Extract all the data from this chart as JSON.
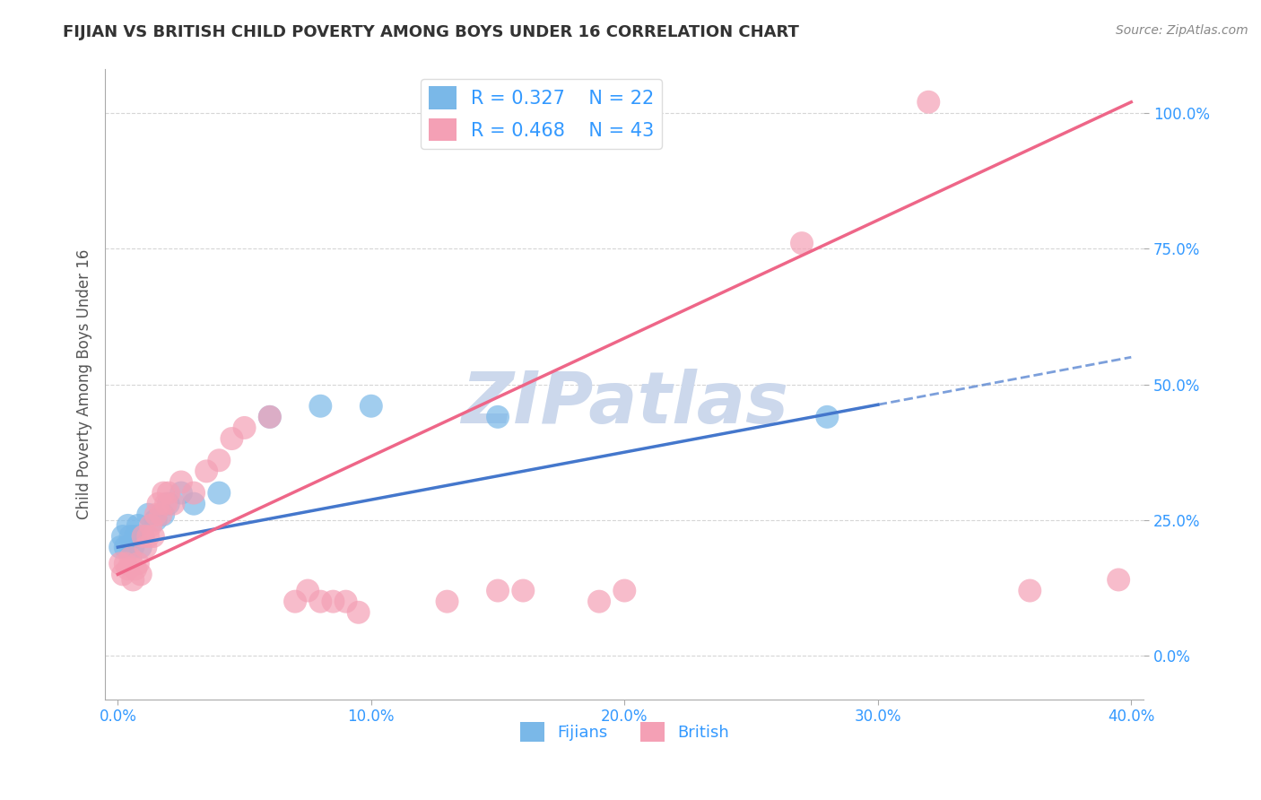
{
  "title": "FIJIAN VS BRITISH CHILD POVERTY AMONG BOYS UNDER 16 CORRELATION CHART",
  "source": "Source: ZipAtlas.com",
  "ylabel": "Child Poverty Among Boys Under 16",
  "fijian_color": "#7ab8e8",
  "british_color": "#f4a0b5",
  "fijian_line_color": "#4477cc",
  "british_line_color": "#ee6688",
  "fijian_R": 0.327,
  "fijian_N": 22,
  "british_R": 0.468,
  "british_N": 43,
  "xlim": [
    -0.005,
    0.405
  ],
  "ylim": [
    -0.08,
    1.08
  ],
  "xtick_vals": [
    0.0,
    0.1,
    0.2,
    0.3,
    0.4
  ],
  "ytick_vals": [
    0.0,
    0.25,
    0.5,
    0.75,
    1.0
  ],
  "xticklabels": [
    "0.0%",
    "10.0%",
    "20.0%",
    "30.0%",
    "40.0%"
  ],
  "yticklabels": [
    "0.0%",
    "25.0%",
    "50.0%",
    "75.0%",
    "100.0%"
  ],
  "watermark": "ZIPatlas",
  "fijian_points": [
    [
      0.001,
      0.2
    ],
    [
      0.002,
      0.22
    ],
    [
      0.003,
      0.2
    ],
    [
      0.004,
      0.24
    ],
    [
      0.005,
      0.22
    ],
    [
      0.006,
      0.2
    ],
    [
      0.007,
      0.22
    ],
    [
      0.008,
      0.24
    ],
    [
      0.009,
      0.2
    ],
    [
      0.01,
      0.22
    ],
    [
      0.012,
      0.26
    ],
    [
      0.015,
      0.25
    ],
    [
      0.018,
      0.26
    ],
    [
      0.02,
      0.28
    ],
    [
      0.025,
      0.3
    ],
    [
      0.03,
      0.28
    ],
    [
      0.04,
      0.3
    ],
    [
      0.06,
      0.44
    ],
    [
      0.08,
      0.46
    ],
    [
      0.1,
      0.46
    ],
    [
      0.15,
      0.44
    ],
    [
      0.28,
      0.44
    ]
  ],
  "british_points": [
    [
      0.001,
      0.17
    ],
    [
      0.002,
      0.15
    ],
    [
      0.003,
      0.17
    ],
    [
      0.004,
      0.16
    ],
    [
      0.005,
      0.18
    ],
    [
      0.006,
      0.14
    ],
    [
      0.007,
      0.16
    ],
    [
      0.008,
      0.17
    ],
    [
      0.009,
      0.15
    ],
    [
      0.01,
      0.22
    ],
    [
      0.011,
      0.2
    ],
    [
      0.012,
      0.22
    ],
    [
      0.013,
      0.24
    ],
    [
      0.014,
      0.22
    ],
    [
      0.015,
      0.26
    ],
    [
      0.016,
      0.28
    ],
    [
      0.017,
      0.26
    ],
    [
      0.018,
      0.3
    ],
    [
      0.019,
      0.28
    ],
    [
      0.02,
      0.3
    ],
    [
      0.022,
      0.28
    ],
    [
      0.025,
      0.32
    ],
    [
      0.03,
      0.3
    ],
    [
      0.035,
      0.34
    ],
    [
      0.04,
      0.36
    ],
    [
      0.045,
      0.4
    ],
    [
      0.05,
      0.42
    ],
    [
      0.06,
      0.44
    ],
    [
      0.07,
      0.1
    ],
    [
      0.075,
      0.12
    ],
    [
      0.08,
      0.1
    ],
    [
      0.085,
      0.1
    ],
    [
      0.09,
      0.1
    ],
    [
      0.095,
      0.08
    ],
    [
      0.13,
      0.1
    ],
    [
      0.15,
      0.12
    ],
    [
      0.16,
      0.12
    ],
    [
      0.19,
      0.1
    ],
    [
      0.2,
      0.12
    ],
    [
      0.27,
      0.76
    ],
    [
      0.32,
      1.02
    ],
    [
      0.36,
      0.12
    ],
    [
      0.395,
      0.14
    ]
  ],
  "legend_text_color": "#3399ff",
  "title_color": "#333333",
  "tick_color": "#3399ff",
  "watermark_color": "#ccd8ec",
  "fijian_line_x0": 0.0,
  "fijian_line_x1": 0.4,
  "fijian_line_y0": 0.2,
  "fijian_line_y1": 0.55,
  "british_line_x0": 0.0,
  "british_line_x1": 0.4,
  "british_line_y0": 0.15,
  "british_line_y1": 1.02
}
